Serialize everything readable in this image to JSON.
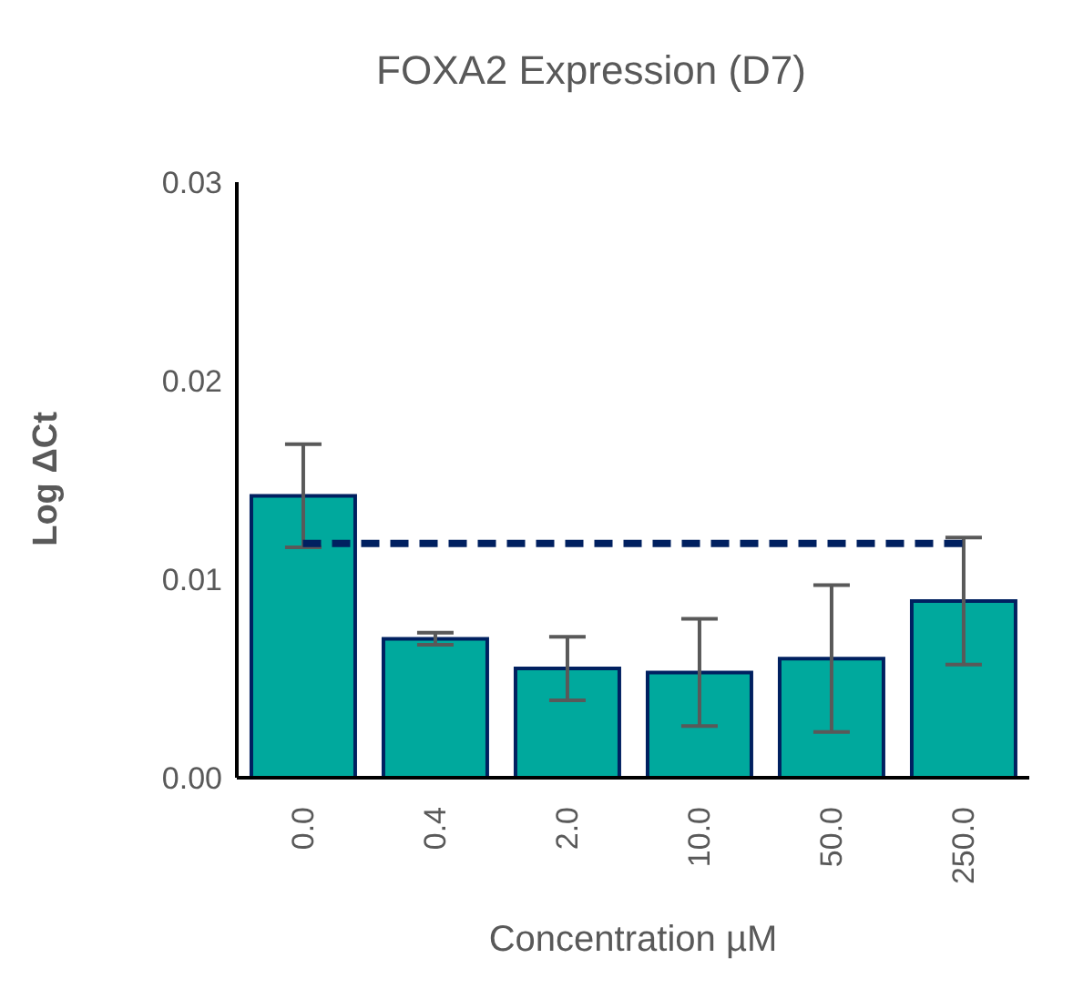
{
  "chart_data": {
    "type": "bar",
    "title": "FOXA2 Expression (D7)",
    "xlabel": "Concentration µM",
    "ylabel": "Log ΔCt",
    "categories": [
      "0.0",
      "0.4",
      "2.0",
      "10.0",
      "50.0",
      "250.0"
    ],
    "series": [
      {
        "color": "#00a99d",
        "values": [
          0.0142,
          0.007,
          0.0055,
          0.0053,
          0.006,
          0.0089
        ],
        "errors": [
          0.0026,
          0.0003,
          0.0016,
          0.0027,
          0.0037,
          0.0032
        ]
      },
      {
        "type": "line",
        "color": "#002060",
        "values": [
          0.0118,
          0.0118,
          0.0118,
          0.0118,
          0.0118,
          0.0118
        ],
        "line_style": "dashed",
        "marker": "none"
      }
    ],
    "ylim": [
      0,
      0.03
    ],
    "yticks": [
      {
        "value": 0,
        "label": "0.00"
      },
      0.01,
      0.02,
      0.03
    ],
    "grid": false,
    "legend": false
  }
}
